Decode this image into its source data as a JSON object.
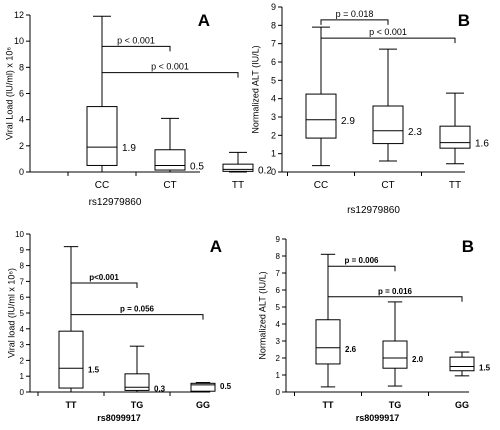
{
  "chart_data": [
    {
      "type": "box",
      "panel_letter": "A",
      "ylabel": "Viral Load (IU/ml) x 10⁶",
      "xlabel": "rs12979860",
      "ylim": [
        0,
        12
      ],
      "yticks": [
        "0",
        "2",
        "4",
        "6",
        "8",
        "10",
        "12"
      ],
      "categories": [
        "CC",
        "CT",
        "TT"
      ],
      "boxes": [
        {
          "min": 0,
          "q1": 0.5,
          "median": 1.9,
          "q3": 5.0,
          "max": 11.9,
          "label": "1.9"
        },
        {
          "min": 0,
          "q1": 0.15,
          "median": 0.5,
          "q3": 1.7,
          "max": 4.1,
          "label": "0.5"
        },
        {
          "min": 0,
          "q1": 0.05,
          "median": 0.2,
          "q3": 0.6,
          "max": 1.5,
          "label": "0.2"
        }
      ],
      "comparisons": [
        {
          "from": 0,
          "to": 1,
          "y": 9.6,
          "label": "p < 0.001"
        },
        {
          "from": 0,
          "to": 2,
          "y": 7.6,
          "label": "p < 0.001"
        }
      ]
    },
    {
      "type": "box",
      "panel_letter": "B",
      "ylabel": "Normalized ALT (IU/L)",
      "xlabel": "rs12979860",
      "ylim": [
        0,
        9
      ],
      "yticks": [
        "0",
        "1",
        "2",
        "3",
        "4",
        "5",
        "6",
        "7",
        "8",
        "9"
      ],
      "categories": [
        "CC",
        "CT",
        "TT"
      ],
      "boxes": [
        {
          "min": 0.35,
          "q1": 1.85,
          "median": 2.85,
          "q3": 4.25,
          "max": 7.9,
          "label": "2.9"
        },
        {
          "min": 0.6,
          "q1": 1.55,
          "median": 2.25,
          "q3": 3.6,
          "max": 6.7,
          "label": "2.3"
        },
        {
          "min": 0.45,
          "q1": 1.3,
          "median": 1.6,
          "q3": 2.5,
          "max": 4.3,
          "label": "1.6"
        }
      ],
      "comparisons": [
        {
          "from": 0,
          "to": 1,
          "y": 8.3,
          "label": "p = 0.018"
        },
        {
          "from": 0,
          "to": 2,
          "y": 7.3,
          "label": "p < 0.001"
        }
      ]
    },
    {
      "type": "box",
      "panel_letter": "A",
      "ylabel": "Viral load (IU/ml x 10⁶)",
      "xlabel": "rs8099917",
      "ylim": [
        0,
        10
      ],
      "yticks": [
        "0",
        "1",
        "2",
        "3",
        "4",
        "5",
        "6",
        "7",
        "8",
        "9",
        "10"
      ],
      "categories": [
        "TT",
        "TG",
        "GG"
      ],
      "boxes": [
        {
          "min": 0,
          "q1": 0.25,
          "median": 1.5,
          "q3": 3.85,
          "max": 9.2,
          "label": "1.5"
        },
        {
          "min": 0,
          "q1": 0.1,
          "median": 0.3,
          "q3": 1.15,
          "max": 2.9,
          "label": "0.3"
        },
        {
          "min": 0,
          "q1": 0.05,
          "median": 0.45,
          "q3": 0.55,
          "max": 0.6,
          "label": "0.5"
        }
      ],
      "comparisons": [
        {
          "from": 0,
          "to": 1,
          "y": 6.9,
          "label": "p<0.001"
        },
        {
          "from": 0,
          "to": 2,
          "y": 4.9,
          "label": "p = 0.056"
        }
      ]
    },
    {
      "type": "box",
      "panel_letter": "B",
      "ylabel": "Normalized ALT (IU/L)",
      "xlabel": "rs8099917",
      "ylim": [
        0,
        9
      ],
      "yticks": [
        "0",
        "1",
        "2",
        "3",
        "4",
        "5",
        "6",
        "7",
        "8",
        "9"
      ],
      "categories": [
        "TT",
        "TG",
        "GG"
      ],
      "boxes": [
        {
          "min": 0.3,
          "q1": 1.65,
          "median": 2.6,
          "q3": 4.25,
          "max": 8.1,
          "label": "2.6"
        },
        {
          "min": 0.35,
          "q1": 1.4,
          "median": 2.0,
          "q3": 3.0,
          "max": 5.3,
          "label": "2.0"
        },
        {
          "min": 0.95,
          "q1": 1.25,
          "median": 1.5,
          "q3": 2.05,
          "max": 2.35,
          "label": "1.5"
        }
      ],
      "comparisons": [
        {
          "from": 0,
          "to": 1,
          "y": 7.4,
          "label": "p = 0.006"
        },
        {
          "from": 0,
          "to": 2,
          "y": 5.6,
          "label": "p = 0.016"
        }
      ]
    }
  ]
}
